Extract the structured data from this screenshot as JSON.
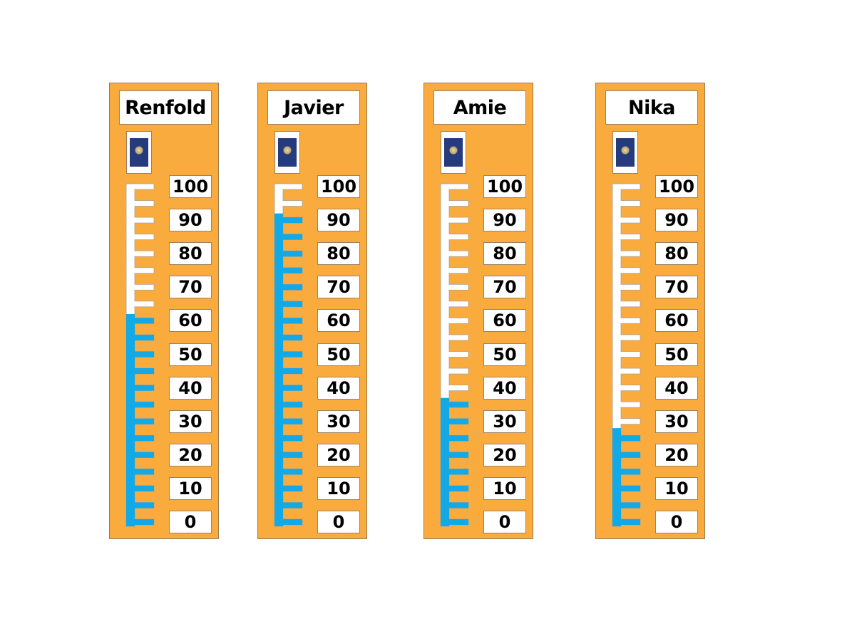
{
  "chart_data": {
    "type": "bar",
    "orientation": "vertical thermometer",
    "categories": [
      "Renfold",
      "Javier",
      "Amie",
      "Nika"
    ],
    "values": [
      62,
      92,
      37,
      28
    ],
    "ylim": [
      0,
      100
    ],
    "tick_labels": [
      "100",
      "90",
      "80",
      "70",
      "60",
      "50",
      "40",
      "30",
      "20",
      "10",
      "0"
    ],
    "minor_tick_step": 5,
    "colors": {
      "fill": "#12a9e6",
      "panel": "#f9ab3e",
      "empty": "#ffffff",
      "passport": "#263a7e"
    },
    "icon": "passport-icon"
  }
}
